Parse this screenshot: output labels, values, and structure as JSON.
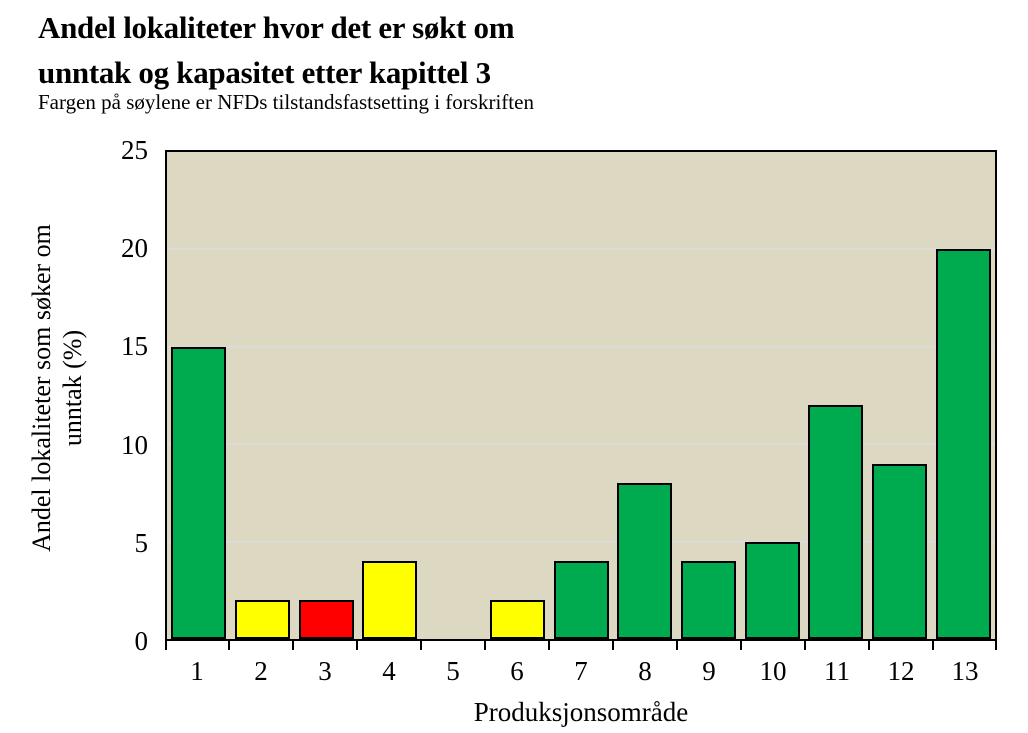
{
  "header": {
    "title_line1": "Andel lokaliteter hvor det er søkt om",
    "title_line2": "unntak og kapasitet etter kapittel 3",
    "subtitle": "Fargen på søylene er NFDs tilstandsfastsetting i forskriften"
  },
  "chart_data": {
    "type": "bar",
    "title": "Andel lokaliteter hvor det er søkt om unntak og kapasitet etter kapittel 3",
    "subtitle": "Fargen på søylene er NFDs tilstandsfastsetting i forskriften",
    "xlabel": "Produksjonsområde",
    "ylabel": "Andel lokaliteter som søker om unntak (%)",
    "ylabel_lines": [
      "Andel lokaliteter som søker om",
      "unntak  (%)"
    ],
    "categories": [
      "1",
      "2",
      "3",
      "4",
      "5",
      "6",
      "7",
      "8",
      "9",
      "10",
      "11",
      "12",
      "13"
    ],
    "values": [
      15,
      2,
      2,
      4,
      0,
      2,
      4,
      8,
      4,
      5,
      12,
      9,
      20
    ],
    "bar_colors": [
      "green",
      "yellow",
      "red",
      "yellow",
      "none",
      "yellow",
      "green",
      "green",
      "green",
      "green",
      "green",
      "green",
      "green"
    ],
    "color_map": {
      "green": "#00AB4F",
      "yellow": "#FFFF00",
      "red": "#FF0000"
    },
    "ylim": [
      0,
      25
    ],
    "yticks": [
      0,
      5,
      10,
      15,
      20,
      25
    ],
    "grid": true,
    "gridline_values": [
      5,
      10,
      15,
      20
    ],
    "plot_background": "#DCD8C2",
    "gridline_color": "#DBDBD8",
    "bar_outline_color": "#000000",
    "legend": "none"
  }
}
